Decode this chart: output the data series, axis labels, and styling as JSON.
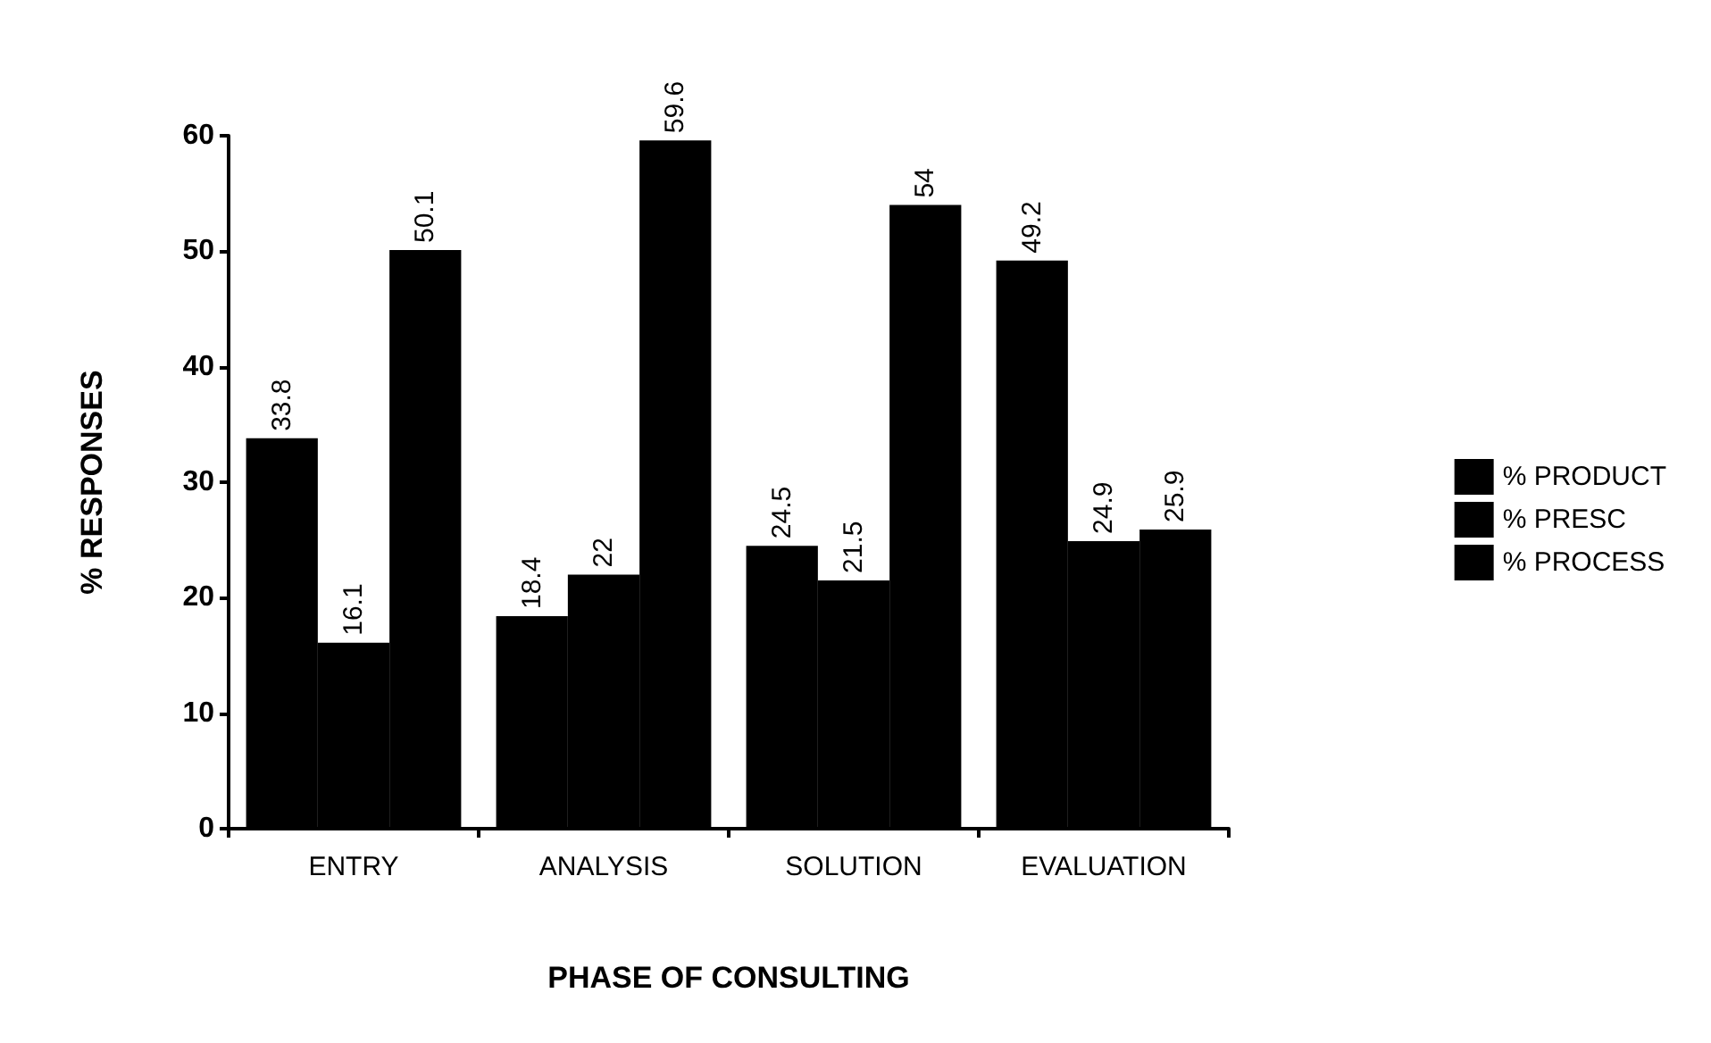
{
  "chart_data": {
    "type": "bar",
    "xlabel": "PHASE OF CONSULTING",
    "ylabel": "% RESPONSES",
    "categories": [
      "ENTRY",
      "ANALYSIS",
      "SOLUTION",
      "EVALUATION"
    ],
    "series": [
      {
        "name": "% PRODUCT",
        "color": "#000000",
        "values": [
          33.8,
          18.4,
          24.5,
          49.2
        ]
      },
      {
        "name": "% PRESC",
        "color": "#000000",
        "values": [
          16.1,
          22,
          21.5,
          24.9
        ]
      },
      {
        "name": "% PROCESS",
        "color": "#000000",
        "values": [
          50.1,
          59.6,
          54,
          25.9
        ]
      }
    ],
    "ylim": [
      0,
      60
    ],
    "yticks": [
      0,
      10,
      20,
      30,
      40,
      50,
      60
    ],
    "grid": false,
    "legend": "right",
    "data_labels": true
  }
}
